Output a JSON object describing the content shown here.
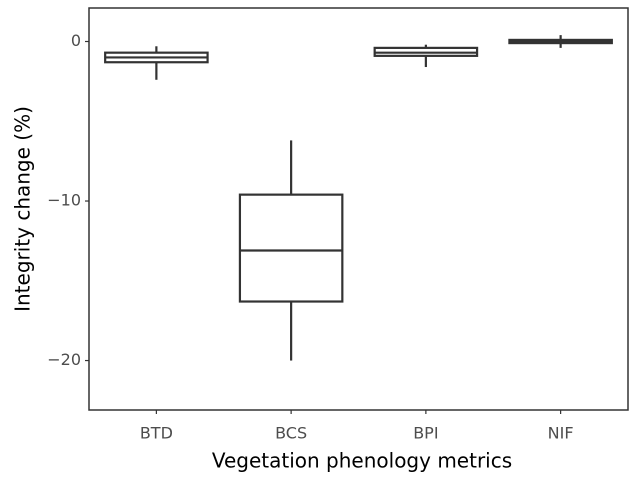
{
  "chart_data": {
    "type": "box",
    "x_label": "Vegetation phenology metrics",
    "y_label": "Integrity change (%)",
    "categories": [
      "BTD",
      "BCS",
      "BPI",
      "NIF"
    ],
    "min": [
      -2.4,
      -20,
      -1.6,
      -0.4
    ],
    "q1": [
      -1.3,
      -16.3,
      -0.9,
      -0.1
    ],
    "median": [
      -1.0,
      -13.1,
      -0.7,
      0
    ],
    "q3": [
      -0.7,
      -9.6,
      -0.4,
      0.1
    ],
    "max": [
      -0.3,
      -6.2,
      -0.2,
      0.4
    ],
    "color": "#333333",
    "ylim": [
      -23.1,
      2.1
    ],
    "yticks": [
      {
        "value": -20,
        "label": "−20"
      },
      {
        "value": -10,
        "label": "−10"
      },
      0
    ]
  }
}
